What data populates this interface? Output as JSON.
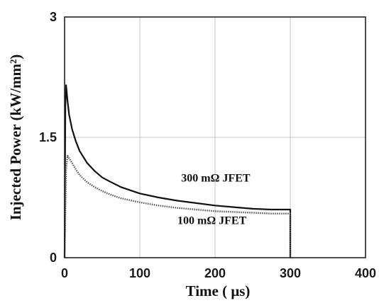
{
  "chart_data": {
    "type": "line",
    "xlabel": "Time ( μs)",
    "ylabel": "Injected Power (kW/mm²)",
    "xlim": [
      0,
      400
    ],
    "ylim": [
      0,
      3
    ],
    "xticks": [
      "0",
      "100",
      "200",
      "300",
      "400"
    ],
    "yticks": [
      "0",
      "1.5",
      "3"
    ],
    "grid": true,
    "series": [
      {
        "name": "300 mΩ JFET",
        "style": "solid",
        "color": "#111111",
        "points": [
          [
            0,
            0
          ],
          [
            1,
            1.9
          ],
          [
            2,
            2.15
          ],
          [
            4,
            1.95
          ],
          [
            6,
            1.78
          ],
          [
            10,
            1.6
          ],
          [
            15,
            1.45
          ],
          [
            20,
            1.33
          ],
          [
            30,
            1.18
          ],
          [
            40,
            1.08
          ],
          [
            50,
            1.0
          ],
          [
            60,
            0.95
          ],
          [
            75,
            0.88
          ],
          [
            100,
            0.8
          ],
          [
            125,
            0.75
          ],
          [
            150,
            0.71
          ],
          [
            175,
            0.68
          ],
          [
            200,
            0.65
          ],
          [
            225,
            0.63
          ],
          [
            250,
            0.61
          ],
          [
            275,
            0.6
          ],
          [
            300,
            0.6
          ],
          [
            300,
            0
          ]
        ]
      },
      {
        "name": "100 mΩ JFET",
        "style": "dotted",
        "color": "#555555",
        "points": [
          [
            0,
            0
          ],
          [
            2,
            1.1
          ],
          [
            4,
            1.27
          ],
          [
            6,
            1.24
          ],
          [
            10,
            1.18
          ],
          [
            15,
            1.1
          ],
          [
            20,
            1.03
          ],
          [
            30,
            0.94
          ],
          [
            40,
            0.88
          ],
          [
            50,
            0.83
          ],
          [
            60,
            0.79
          ],
          [
            75,
            0.74
          ],
          [
            100,
            0.69
          ],
          [
            125,
            0.65
          ],
          [
            150,
            0.62
          ],
          [
            175,
            0.6
          ],
          [
            200,
            0.58
          ],
          [
            225,
            0.57
          ],
          [
            250,
            0.56
          ],
          [
            275,
            0.55
          ],
          [
            300,
            0.55
          ],
          [
            300,
            0
          ]
        ]
      }
    ],
    "annotations": [
      {
        "text": "300 mΩ JFET",
        "x": 155,
        "y": 0.95,
        "series": 0
      },
      {
        "text": "100 mΩ JFET",
        "x": 150,
        "y": 0.42,
        "series": 1
      }
    ]
  }
}
